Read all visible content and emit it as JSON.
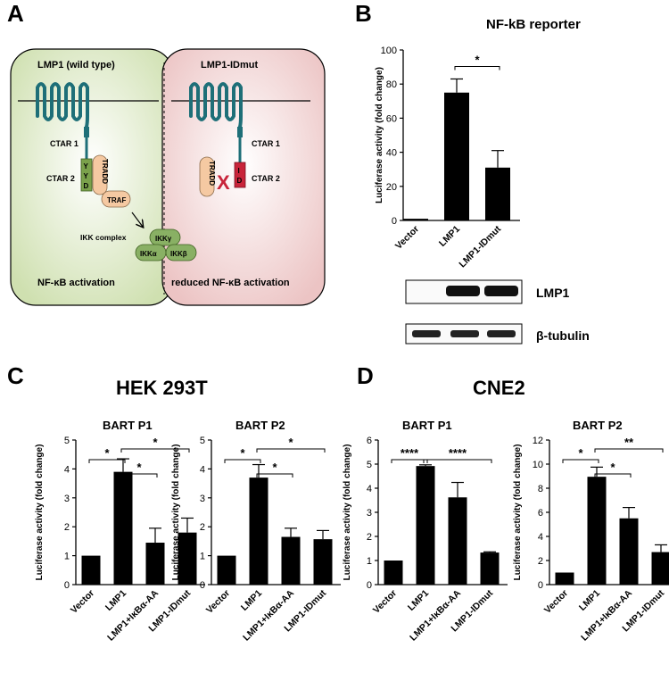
{
  "panel_labels": {
    "a": "A",
    "b": "B",
    "c": "C",
    "d": "D"
  },
  "panel_a": {
    "left_cell": {
      "title": "LMP1 (wild type)",
      "ctar1": "CTAR 1",
      "ctar2": "CTAR 2",
      "yyd": [
        "Y",
        "Y",
        "D"
      ],
      "tradd": "TRADD",
      "traf": "TRAF",
      "footer": "NF-κB activation"
    },
    "right_cell": {
      "title": "LMP1-IDmut",
      "ctar1": "CTAR 1",
      "ctar2": "CTAR 2",
      "id": [
        "I",
        "D"
      ],
      "tradd": "TRADD",
      "block_mark": "X",
      "footer": "reduced NF-κB activation"
    },
    "ikk": {
      "label": "IKK complex",
      "gamma": "IKKγ",
      "alpha": "IKKα",
      "beta": "IKKβ"
    },
    "colors": {
      "left_cell": "#dde9c6",
      "right_cell": "#f1d6d6",
      "protein": "#1e6f78",
      "yyd_box": "#7aa14b",
      "id_box": "#c8243a",
      "tradd": "#f5c9a2",
      "ikk": "#89b064",
      "x_mark": "#c8243a"
    }
  },
  "panel_b_blot": {
    "lmp1_label": "LMP1",
    "tubulin_label": "β-tubulin"
  },
  "group_titles": {
    "c": "HEK 293T",
    "d": "CNE2"
  },
  "chart_data": [
    {
      "id": "B",
      "type": "bar",
      "title": "NF-kB reporter",
      "ylabel": "Luciferase activity (fold change)",
      "categories": [
        "Vector",
        "LMP1",
        "LMP1-IDmut"
      ],
      "values": [
        1,
        75,
        31
      ],
      "errors": [
        0,
        8,
        10
      ],
      "ylim": [
        0,
        100
      ],
      "yticks": [
        "0",
        "20",
        "40",
        "60",
        "80",
        "100"
      ],
      "significance": [
        {
          "from": 1,
          "to": 2,
          "label": "*"
        }
      ]
    },
    {
      "id": "C1",
      "type": "bar",
      "title": "BART P1",
      "ylabel": "Luciferase activity (fold change)",
      "categories": [
        "Vector",
        "LMP1",
        "LMP1+IκBα-AA",
        "LMP1-IDmut"
      ],
      "values": [
        1,
        3.9,
        1.45,
        1.8
      ],
      "errors": [
        0,
        0.45,
        0.5,
        0.5
      ],
      "ylim": [
        0,
        5
      ],
      "yticks": [
        "0",
        "1",
        "2",
        "3",
        "4",
        "5"
      ],
      "significance": [
        {
          "from": 0,
          "to": 1,
          "label": "*"
        },
        {
          "from": 1,
          "to": 2,
          "label": "*"
        },
        {
          "from": 1,
          "to": 3,
          "label": "*"
        }
      ]
    },
    {
      "id": "C2",
      "type": "bar",
      "title": "BART P2",
      "ylabel": "Luciferase activity (fold change)",
      "categories": [
        "Vector",
        "LMP1",
        "LMP1+IκBα-AA",
        "LMP1-IDmut"
      ],
      "values": [
        1,
        3.7,
        1.65,
        1.57
      ],
      "errors": [
        0,
        0.45,
        0.3,
        0.3
      ],
      "ylim": [
        0,
        5
      ],
      "yticks": [
        "0",
        "1",
        "2",
        "3",
        "4",
        "5"
      ],
      "significance": [
        {
          "from": 0,
          "to": 1,
          "label": "*"
        },
        {
          "from": 1,
          "to": 2,
          "label": "*"
        },
        {
          "from": 1,
          "to": 3,
          "label": "*"
        }
      ]
    },
    {
      "id": "D1",
      "type": "bar",
      "title": "BART P1",
      "ylabel": "Luciferase activity (fold change)",
      "categories": [
        "Vector",
        "LMP1",
        "LMP1+IκBα-AA",
        "LMP1-IDmut"
      ],
      "values": [
        1,
        4.92,
        3.62,
        1.33
      ],
      "errors": [
        0,
        0.05,
        0.62,
        0.03
      ],
      "ylim": [
        0,
        6
      ],
      "yticks": [
        "0",
        "1",
        "2",
        "3",
        "4",
        "5",
        "6"
      ],
      "significance": [
        {
          "from": 0,
          "to": 1,
          "label": "****"
        },
        {
          "from": 1,
          "to": 3,
          "label": "****"
        }
      ]
    },
    {
      "id": "D2",
      "type": "bar",
      "title": "BART P2",
      "ylabel": "Luciferase activity (fold change)",
      "categories": [
        "Vector",
        "LMP1",
        "LMP1+IκBα-AA",
        "LMP1-IDmut"
      ],
      "values": [
        1,
        8.95,
        5.5,
        2.7
      ],
      "errors": [
        0,
        0.8,
        0.9,
        0.6
      ],
      "ylim": [
        0,
        12
      ],
      "yticks": [
        "0",
        "2",
        "4",
        "6",
        "8",
        "10",
        "12"
      ],
      "significance": [
        {
          "from": 0,
          "to": 1,
          "label": "*"
        },
        {
          "from": 1,
          "to": 2,
          "label": "*"
        },
        {
          "from": 1,
          "to": 3,
          "label": "**"
        }
      ]
    }
  ]
}
